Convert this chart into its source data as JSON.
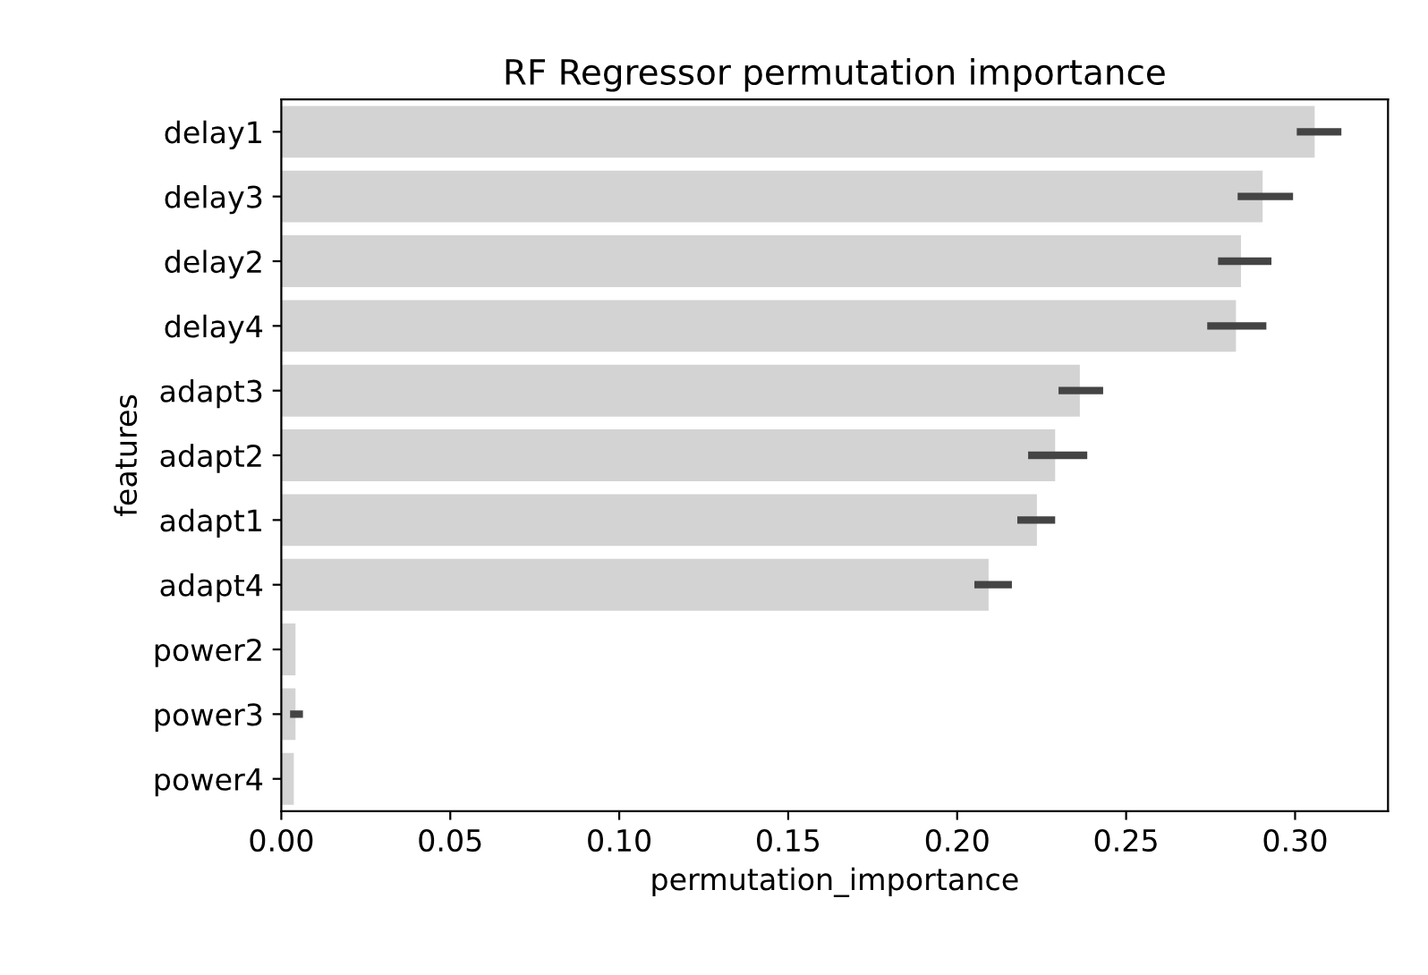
{
  "chart_data": {
    "type": "bar",
    "orientation": "horizontal",
    "title": "RF Regressor permutation importance",
    "xlabel": "permutation_importance",
    "ylabel": "features",
    "categories": [
      "delay1",
      "delay3",
      "delay2",
      "delay4",
      "adapt3",
      "adapt2",
      "adapt1",
      "adapt4",
      "power2",
      "power3",
      "power4"
    ],
    "values": [
      0.3058,
      0.2904,
      0.284,
      0.2825,
      0.2363,
      0.229,
      0.2236,
      0.2093,
      0.0042,
      0.0042,
      0.0037
    ],
    "errors": [
      [
        0.3005,
        0.3137
      ],
      [
        0.283,
        0.2994
      ],
      [
        0.2772,
        0.293
      ],
      [
        0.274,
        0.2915
      ],
      [
        0.23,
        0.2432
      ],
      [
        0.221,
        0.2385
      ],
      [
        0.2178,
        0.229
      ],
      [
        0.2051,
        0.2162
      ],
      null,
      [
        0.0026,
        0.0064
      ],
      null
    ],
    "color": "#d3d3d3",
    "xlim": [
      0,
      0.3275
    ],
    "xticks": [
      {
        "value": 0,
        "label": "0.00"
      },
      0.05,
      {
        "value": 0.1,
        "label": "0.10"
      },
      0.15,
      {
        "value": 0.2,
        "label": "0.20"
      },
      0.25,
      {
        "value": 0.3,
        "label": "0.30"
      }
    ],
    "grid": false
  }
}
